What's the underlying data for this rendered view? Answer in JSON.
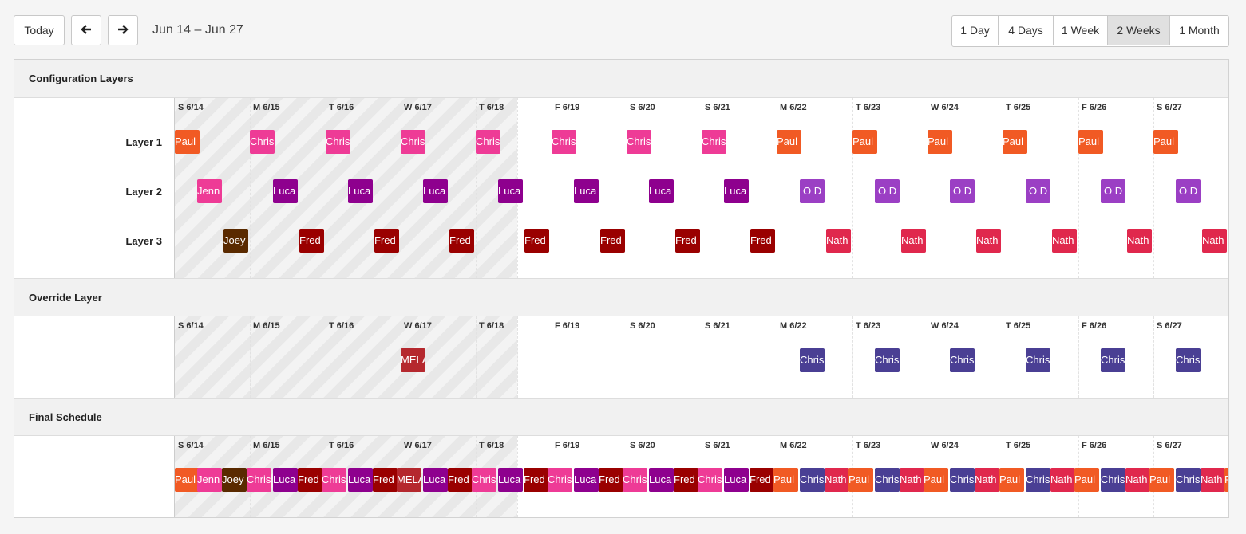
{
  "toolbar": {
    "today_label": "Today",
    "prev_icon": "arrow-left-icon",
    "next_icon": "arrow-right-icon",
    "range_label": "Jun 14 – Jun 27",
    "views": [
      {
        "label": "1 Day",
        "active": false
      },
      {
        "label": "4 Days",
        "active": false
      },
      {
        "label": "1 Week",
        "active": false
      },
      {
        "label": "2 Weeks",
        "active": true
      },
      {
        "label": "1 Month",
        "active": false
      }
    ]
  },
  "days": [
    "S 6/14",
    "M 6/15",
    "T 6/16",
    "W 6/17",
    "T 6/18",
    "F 6/19",
    "S 6/20",
    "S 6/21",
    "M 6/22",
    "T 6/23",
    "W 6/24",
    "T 6/25",
    "F 6/26",
    "S 6/27"
  ],
  "colors": {
    "Paul": "#f15a24",
    "Chris": "#ee3b96",
    "Jenn": "#ee3b96",
    "Luca": "#8e008e",
    "O D": "#9b3fc4",
    "Joey": "#5a2a00",
    "Fred": "#9a0000",
    "Nath": "#e0284d",
    "MELA": "#b5282e",
    "ChrisO": "#4a3f94"
  },
  "sections": {
    "config": {
      "title": "Configuration Layers",
      "rows": [
        {
          "label": "Layer 1",
          "blocks": [
            {
              "t": "Paul",
              "c": "Paul",
              "d": 0
            },
            {
              "t": "Chris",
              "c": "Chris",
              "d": 1
            },
            {
              "t": "Chris",
              "c": "Chris",
              "d": 2
            },
            {
              "t": "Chris",
              "c": "Chris",
              "d": 3
            },
            {
              "t": "Chris",
              "c": "Chris",
              "d": 4
            },
            {
              "t": "Chris",
              "c": "Chris",
              "d": 5
            },
            {
              "t": "Chris",
              "c": "Chris",
              "d": 6
            },
            {
              "t": "Chris",
              "c": "Chris",
              "d": 7
            },
            {
              "t": "Paul",
              "c": "Paul",
              "d": 8
            },
            {
              "t": "Paul",
              "c": "Paul",
              "d": 9
            },
            {
              "t": "Paul",
              "c": "Paul",
              "d": 10
            },
            {
              "t": "Paul",
              "c": "Paul",
              "d": 11
            },
            {
              "t": "Paul",
              "c": "Paul",
              "d": 12
            },
            {
              "t": "Paul",
              "c": "Paul",
              "d": 13
            },
            {
              "t": "Paul",
              "c": "Paul",
              "d": 14
            }
          ]
        },
        {
          "label": "Layer 2",
          "blocks": [
            {
              "t": "Jenn",
              "c": "Jenn",
              "d": 0.3
            },
            {
              "t": "Luca",
              "c": "Luca",
              "d": 1.3
            },
            {
              "t": "Luca",
              "c": "Luca",
              "d": 2.3
            },
            {
              "t": "Luca",
              "c": "Luca",
              "d": 3.3
            },
            {
              "t": "Luca",
              "c": "Luca",
              "d": 4.3
            },
            {
              "t": "Luca",
              "c": "Luca",
              "d": 5.3
            },
            {
              "t": "Luca",
              "c": "Luca",
              "d": 6.3
            },
            {
              "t": "Luca",
              "c": "Luca",
              "d": 7.3
            },
            {
              "t": "O D",
              "c": "O D",
              "d": 8.3
            },
            {
              "t": "O D",
              "c": "O D",
              "d": 9.3
            },
            {
              "t": "O D",
              "c": "O D",
              "d": 10.3
            },
            {
              "t": "O D",
              "c": "O D",
              "d": 11.3
            },
            {
              "t": "O D",
              "c": "O D",
              "d": 12.3
            },
            {
              "t": "O D",
              "c": "O D",
              "d": 13.3
            }
          ]
        },
        {
          "label": "Layer 3",
          "blocks": [
            {
              "t": "Joey",
              "c": "Joey",
              "d": 0.65
            },
            {
              "t": "Fred",
              "c": "Fred",
              "d": 1.65
            },
            {
              "t": "Fred",
              "c": "Fred",
              "d": 2.65
            },
            {
              "t": "Fred",
              "c": "Fred",
              "d": 3.65
            },
            {
              "t": "Fred",
              "c": "Fred",
              "d": 4.65
            },
            {
              "t": "Fred",
              "c": "Fred",
              "d": 5.65
            },
            {
              "t": "Fred",
              "c": "Fred",
              "d": 6.65
            },
            {
              "t": "Fred",
              "c": "Fred",
              "d": 7.65
            },
            {
              "t": "Nath",
              "c": "Nath",
              "d": 8.65
            },
            {
              "t": "Nath",
              "c": "Nath",
              "d": 9.65
            },
            {
              "t": "Nath",
              "c": "Nath",
              "d": 10.65
            },
            {
              "t": "Nath",
              "c": "Nath",
              "d": 11.65
            },
            {
              "t": "Nath",
              "c": "Nath",
              "d": 12.65
            },
            {
              "t": "Nath",
              "c": "Nath",
              "d": 13.65
            }
          ]
        }
      ]
    },
    "override": {
      "title": "Override Layer",
      "rows": [
        {
          "label": "",
          "blocks": [
            {
              "t": "MELA",
              "c": "MELA",
              "d": 3
            },
            {
              "t": "Chris",
              "c": "ChrisO",
              "d": 8.3
            },
            {
              "t": "Chris",
              "c": "ChrisO",
              "d": 9.3
            },
            {
              "t": "Chris",
              "c": "ChrisO",
              "d": 10.3
            },
            {
              "t": "Chris",
              "c": "ChrisO",
              "d": 11.3
            },
            {
              "t": "Chris",
              "c": "ChrisO",
              "d": 12.3
            },
            {
              "t": "Chris",
              "c": "ChrisO",
              "d": 13.3
            }
          ]
        }
      ]
    },
    "final": {
      "title": "Final Schedule",
      "rows": [
        {
          "label": "",
          "blocks": [
            {
              "t": "Paul",
              "c": "Paul",
              "d": 0
            },
            {
              "t": "Jenn",
              "c": "Jenn",
              "d": 0.3
            },
            {
              "t": "Joey",
              "c": "Joey",
              "d": 0.63
            },
            {
              "t": "Chris",
              "c": "Chris",
              "d": 0.95
            },
            {
              "t": "Luca",
              "c": "Luca",
              "d": 1.3
            },
            {
              "t": "Fred",
              "c": "Fred",
              "d": 1.63
            },
            {
              "t": "Chris",
              "c": "Chris",
              "d": 1.95
            },
            {
              "t": "Luca",
              "c": "Luca",
              "d": 2.3
            },
            {
              "t": "Fred",
              "c": "Fred",
              "d": 2.63
            },
            {
              "t": "MELA",
              "c": "MELA",
              "d": 2.95
            },
            {
              "t": "Luca",
              "c": "Luca",
              "d": 3.3
            },
            {
              "t": "Fred",
              "c": "Fred",
              "d": 3.63
            },
            {
              "t": "Chris",
              "c": "Chris",
              "d": 3.95
            },
            {
              "t": "Luca",
              "c": "Luca",
              "d": 4.3
            },
            {
              "t": "Fred",
              "c": "Fred",
              "d": 4.63
            },
            {
              "t": "Chris",
              "c": "Chris",
              "d": 4.95
            },
            {
              "t": "Luca",
              "c": "Luca",
              "d": 5.3
            },
            {
              "t": "Fred",
              "c": "Fred",
              "d": 5.63
            },
            {
              "t": "Chris",
              "c": "Chris",
              "d": 5.95
            },
            {
              "t": "Luca",
              "c": "Luca",
              "d": 6.3
            },
            {
              "t": "Fred",
              "c": "Fred",
              "d": 6.63
            },
            {
              "t": "Chris",
              "c": "Chris",
              "d": 6.95
            },
            {
              "t": "Luca",
              "c": "Luca",
              "d": 7.3
            },
            {
              "t": "Fred",
              "c": "Fred",
              "d": 7.63
            },
            {
              "t": "Paul",
              "c": "Paul",
              "d": 7.95
            },
            {
              "t": "Chris",
              "c": "ChrisO",
              "d": 8.3
            },
            {
              "t": "Nath",
              "c": "Nath",
              "d": 8.63
            },
            {
              "t": "Paul",
              "c": "Paul",
              "d": 8.95
            },
            {
              "t": "Chris",
              "c": "ChrisO",
              "d": 9.3
            },
            {
              "t": "Nath",
              "c": "Nath",
              "d": 9.63
            },
            {
              "t": "Paul",
              "c": "Paul",
              "d": 9.95
            },
            {
              "t": "Chris",
              "c": "ChrisO",
              "d": 10.3
            },
            {
              "t": "Nath",
              "c": "Nath",
              "d": 10.63
            },
            {
              "t": "Paul",
              "c": "Paul",
              "d": 10.95
            },
            {
              "t": "Chris",
              "c": "ChrisO",
              "d": 11.3
            },
            {
              "t": "Nath",
              "c": "Nath",
              "d": 11.63
            },
            {
              "t": "Paul",
              "c": "Paul",
              "d": 11.95
            },
            {
              "t": "Chris",
              "c": "ChrisO",
              "d": 12.3
            },
            {
              "t": "Nath",
              "c": "Nath",
              "d": 12.63
            },
            {
              "t": "Paul",
              "c": "Paul",
              "d": 12.95
            },
            {
              "t": "Chris",
              "c": "ChrisO",
              "d": 13.3
            },
            {
              "t": "Nath",
              "c": "Nath",
              "d": 13.63
            },
            {
              "t": "Paul",
              "c": "Paul",
              "d": 13.95
            }
          ]
        }
      ]
    }
  }
}
